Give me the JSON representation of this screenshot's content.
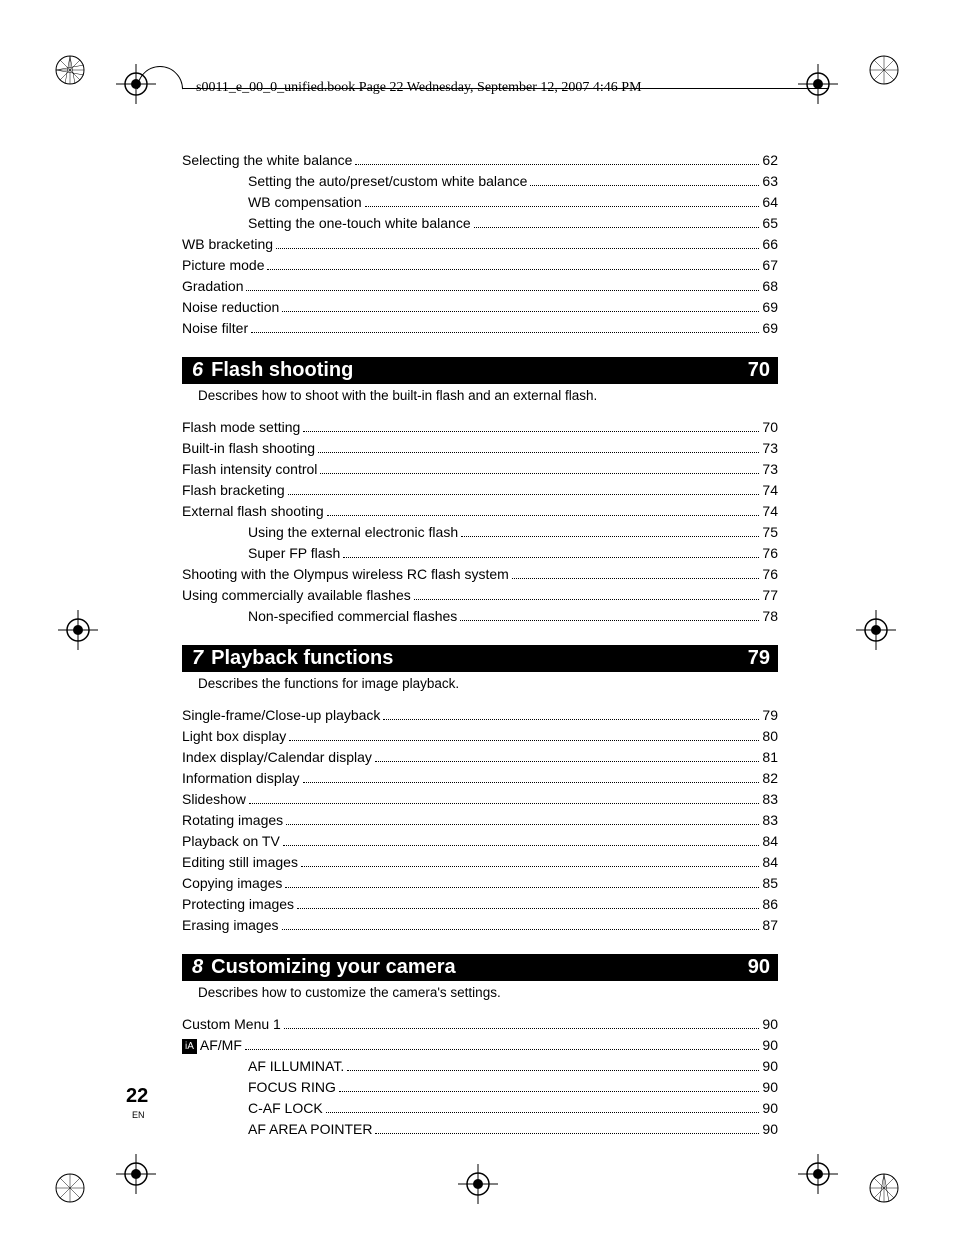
{
  "pageHeader": "s0011_e_00_0_unified.book  Page 22  Wednesday, September 12, 2007  4:46 PM",
  "pageNumber": "22",
  "pageLang": "EN",
  "preSection": {
    "entries": [
      {
        "label": "Selecting the white balance",
        "page": "62",
        "indent": 0
      },
      {
        "label": "Setting the auto/preset/custom white balance",
        "page": "63",
        "indent": 1
      },
      {
        "label": "WB compensation",
        "page": "64",
        "indent": 1
      },
      {
        "label": "Setting the one-touch white balance",
        "page": "65",
        "indent": 1
      },
      {
        "label": "WB bracketing",
        "page": "66",
        "indent": 0
      },
      {
        "label": "Picture mode",
        "page": "67",
        "indent": 0
      },
      {
        "label": "Gradation",
        "page": "68",
        "indent": 0
      },
      {
        "label": "Noise reduction",
        "page": "69",
        "indent": 0
      },
      {
        "label": "Noise filter",
        "page": "69",
        "indent": 0
      }
    ]
  },
  "sections": [
    {
      "num": "6",
      "title": "Flash shooting",
      "page": "70",
      "desc": "Describes how to shoot with the built-in flash and an external flash.",
      "entries": [
        {
          "label": "Flash mode setting",
          "page": "70",
          "indent": 0
        },
        {
          "label": "Built-in flash shooting",
          "page": "73",
          "indent": 0
        },
        {
          "label": "Flash intensity control",
          "page": "73",
          "indent": 0
        },
        {
          "label": "Flash bracketing",
          "page": "74",
          "indent": 0
        },
        {
          "label": "External flash shooting",
          "page": "74",
          "indent": 0
        },
        {
          "label": "Using the external electronic flash",
          "page": "75",
          "indent": 1
        },
        {
          "label": "Super FP flash",
          "page": "76",
          "indent": 1
        },
        {
          "label": "Shooting with the Olympus wireless RC flash system",
          "page": "76",
          "indent": 0
        },
        {
          "label": "Using commercially available flashes",
          "page": "77",
          "indent": 0
        },
        {
          "label": "Non-specified commercial flashes",
          "page": "78",
          "indent": 1
        }
      ]
    },
    {
      "num": "7",
      "title": "Playback functions",
      "page": "79",
      "desc": "Describes the functions for image playback.",
      "entries": [
        {
          "label": "Single-frame/Close-up playback",
          "page": "79",
          "indent": 0
        },
        {
          "label": "Light box display",
          "page": "80",
          "indent": 0
        },
        {
          "label": "Index display/Calendar display",
          "page": "81",
          "indent": 0
        },
        {
          "label": "Information display",
          "page": "82",
          "indent": 0
        },
        {
          "label": "Slideshow",
          "page": "83",
          "indent": 0
        },
        {
          "label": "Rotating images",
          "page": "83",
          "indent": 0
        },
        {
          "label": "Playback on TV",
          "page": "84",
          "indent": 0
        },
        {
          "label": "Editing still images",
          "page": "84",
          "indent": 0
        },
        {
          "label": "Copying images",
          "page": "85",
          "indent": 0
        },
        {
          "label": "Protecting images",
          "page": "86",
          "indent": 0
        },
        {
          "label": "Erasing images",
          "page": "87",
          "indent": 0
        }
      ]
    },
    {
      "num": "8",
      "title": "Customizing your camera",
      "page": "90",
      "desc": "Describes how to customize the camera's settings.",
      "entries": [
        {
          "label": "Custom Menu 1",
          "page": "90",
          "indent": 0
        },
        {
          "label": "AF/MF",
          "page": "90",
          "indent": 0,
          "prefix": "iA"
        },
        {
          "label": "AF ILLUMINAT.",
          "page": "90",
          "indent": 1
        },
        {
          "label": "FOCUS RING",
          "page": "90",
          "indent": 1
        },
        {
          "label": "C-AF LOCK",
          "page": "90",
          "indent": 1
        },
        {
          "label": "AF AREA POINTER",
          "page": "90",
          "indent": 1
        }
      ]
    }
  ]
}
